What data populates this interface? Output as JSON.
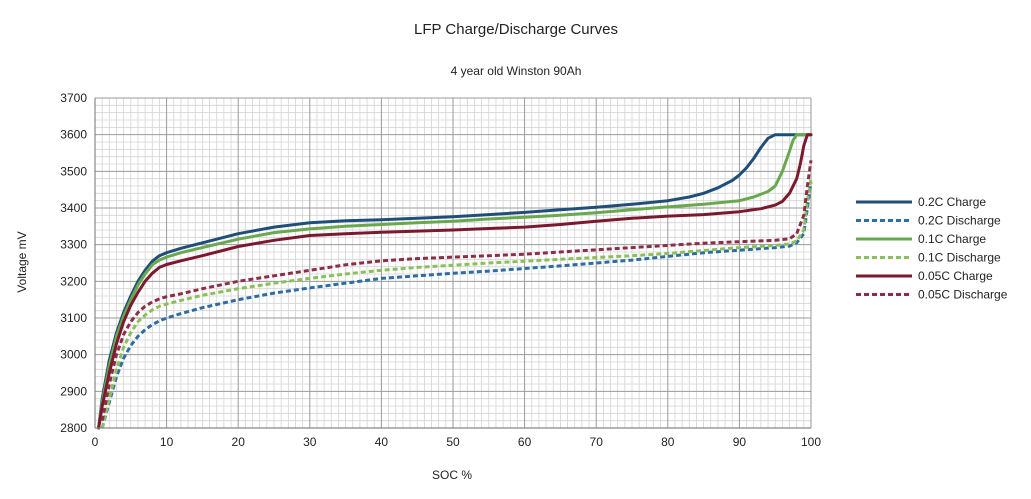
{
  "chart_data": {
    "type": "line",
    "title": "LFP Charge/Discharge Curves",
    "subtitle": "4 year old Winston 90Ah",
    "xlabel": "SOC %",
    "ylabel": "Voltage mV",
    "xlim": [
      0,
      100
    ],
    "ylim": [
      2800,
      3700
    ],
    "xticks": [
      0,
      10,
      20,
      30,
      40,
      50,
      60,
      70,
      80,
      90,
      100
    ],
    "yticks": [
      2800,
      2900,
      3000,
      3100,
      3200,
      3300,
      3400,
      3500,
      3600,
      3700
    ],
    "grid": true,
    "legend_position": "right",
    "series": [
      {
        "name": "0.2C Charge",
        "color": "#1f4e79",
        "dash": "solid",
        "x": [
          0.5,
          1,
          2,
          3,
          4,
          5,
          6,
          7,
          8,
          9,
          10,
          12,
          15,
          20,
          25,
          30,
          35,
          40,
          45,
          50,
          55,
          60,
          65,
          70,
          75,
          80,
          83,
          85,
          87,
          89,
          90,
          91,
          92,
          93,
          94,
          95,
          96,
          97,
          98,
          99,
          100
        ],
        "y": [
          2800,
          2880,
          2985,
          3060,
          3115,
          3160,
          3200,
          3230,
          3255,
          3270,
          3278,
          3290,
          3305,
          3330,
          3348,
          3360,
          3365,
          3368,
          3372,
          3376,
          3382,
          3388,
          3395,
          3402,
          3410,
          3420,
          3430,
          3440,
          3455,
          3475,
          3490,
          3510,
          3535,
          3565,
          3590,
          3600,
          3600,
          3600,
          3600,
          3600,
          3600
        ]
      },
      {
        "name": "0.2C Discharge",
        "color": "#2e6ca4",
        "dash": "dashed",
        "x": [
          1,
          2,
          3,
          4,
          5,
          6,
          7,
          8,
          9,
          10,
          12,
          15,
          20,
          25,
          30,
          35,
          40,
          45,
          50,
          55,
          60,
          65,
          70,
          75,
          80,
          85,
          90,
          95,
          97,
          98,
          99,
          99.5,
          100
        ],
        "y": [
          2800,
          2870,
          2940,
          2990,
          3025,
          3050,
          3068,
          3082,
          3092,
          3100,
          3112,
          3128,
          3150,
          3168,
          3182,
          3195,
          3208,
          3215,
          3222,
          3228,
          3235,
          3242,
          3250,
          3258,
          3268,
          3278,
          3285,
          3292,
          3296,
          3305,
          3330,
          3400,
          3470
        ]
      },
      {
        "name": "0.1C Charge",
        "color": "#6aa84f",
        "dash": "solid",
        "x": [
          0.5,
          1,
          2,
          3,
          4,
          5,
          6,
          7,
          8,
          9,
          10,
          12,
          15,
          20,
          25,
          30,
          35,
          40,
          45,
          50,
          55,
          60,
          65,
          70,
          75,
          80,
          85,
          88,
          90,
          92,
          94,
          95,
          96,
          97,
          97.5,
          98,
          99,
          100
        ],
        "y": [
          2800,
          2870,
          2970,
          3050,
          3105,
          3150,
          3190,
          3220,
          3245,
          3258,
          3266,
          3278,
          3292,
          3315,
          3333,
          3343,
          3350,
          3355,
          3360,
          3364,
          3370,
          3375,
          3380,
          3387,
          3395,
          3403,
          3410,
          3416,
          3420,
          3430,
          3445,
          3460,
          3500,
          3555,
          3585,
          3600,
          3600,
          3600
        ]
      },
      {
        "name": "0.1C Discharge",
        "color": "#8bbf5a",
        "dash": "dashed",
        "x": [
          1,
          2,
          3,
          4,
          5,
          6,
          7,
          8,
          9,
          10,
          12,
          15,
          20,
          25,
          30,
          35,
          40,
          45,
          50,
          55,
          60,
          65,
          70,
          75,
          80,
          85,
          90,
          95,
          97,
          98,
          99,
          99.5,
          100
        ],
        "y": [
          2800,
          2880,
          2960,
          3020,
          3060,
          3090,
          3108,
          3122,
          3132,
          3138,
          3148,
          3162,
          3180,
          3195,
          3208,
          3220,
          3230,
          3238,
          3244,
          3250,
          3255,
          3260,
          3265,
          3270,
          3276,
          3284,
          3292,
          3298,
          3302,
          3310,
          3340,
          3420,
          3480
        ]
      },
      {
        "name": "0.05C Charge",
        "color": "#7b1a2e",
        "dash": "solid",
        "x": [
          0.5,
          1,
          2,
          3,
          4,
          5,
          6,
          7,
          8,
          9,
          10,
          12,
          15,
          20,
          25,
          30,
          35,
          40,
          45,
          50,
          55,
          60,
          65,
          70,
          75,
          80,
          85,
          90,
          93,
          95,
          96,
          97,
          98,
          98.5,
          99,
          99.5,
          100
        ],
        "y": [
          2800,
          2860,
          2950,
          3030,
          3090,
          3135,
          3170,
          3200,
          3222,
          3238,
          3246,
          3256,
          3270,
          3295,
          3312,
          3325,
          3330,
          3334,
          3337,
          3340,
          3344,
          3348,
          3355,
          3364,
          3372,
          3378,
          3382,
          3390,
          3398,
          3408,
          3418,
          3440,
          3480,
          3520,
          3570,
          3600,
          3600
        ]
      },
      {
        "name": "0.05C Discharge",
        "color": "#8e2d45",
        "dash": "dashed",
        "x": [
          1,
          2,
          3,
          4,
          5,
          6,
          7,
          8,
          9,
          10,
          12,
          15,
          20,
          25,
          30,
          35,
          40,
          45,
          50,
          55,
          60,
          65,
          70,
          75,
          80,
          85,
          90,
          95,
          97,
          98,
          99,
          99.5,
          100
        ],
        "y": [
          2820,
          2920,
          3000,
          3055,
          3090,
          3115,
          3132,
          3144,
          3152,
          3158,
          3166,
          3180,
          3200,
          3215,
          3230,
          3245,
          3256,
          3262,
          3266,
          3270,
          3274,
          3280,
          3286,
          3292,
          3298,
          3304,
          3308,
          3312,
          3316,
          3330,
          3380,
          3460,
          3530
        ]
      }
    ]
  }
}
